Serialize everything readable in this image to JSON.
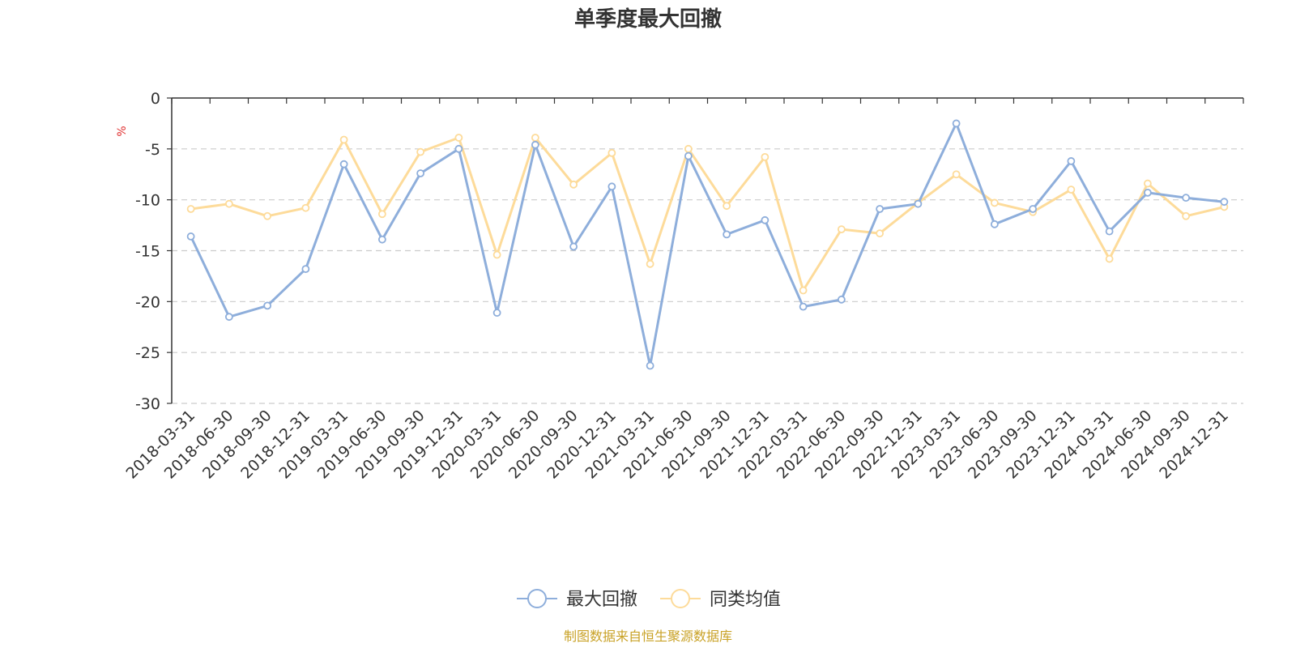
{
  "chart_data": {
    "type": "line",
    "title": "单季度最大回撤",
    "ylabel": "%",
    "ylim": [
      -30,
      0
    ],
    "yticks": [
      0,
      -5,
      -10,
      -15,
      -20,
      -25,
      -30
    ],
    "grid": true,
    "legend_position": "bottom",
    "categories": [
      "2018-03-31",
      "2018-06-30",
      "2018-09-30",
      "2018-12-31",
      "2019-03-31",
      "2019-06-30",
      "2019-09-30",
      "2019-12-31",
      "2020-03-31",
      "2020-06-30",
      "2020-09-30",
      "2020-12-31",
      "2021-03-31",
      "2021-06-30",
      "2021-09-30",
      "2021-12-31",
      "2022-03-31",
      "2022-06-30",
      "2022-09-30",
      "2022-12-31",
      "2023-03-31",
      "2023-06-30",
      "2023-09-30",
      "2023-12-31",
      "2024-03-31",
      "2024-06-30",
      "2024-09-30",
      "2024-12-31"
    ],
    "series": [
      {
        "name": "最大回撤",
        "color": "#8eaedb",
        "values": [
          -13.6,
          -21.5,
          -20.4,
          -16.8,
          -6.5,
          -13.9,
          -7.4,
          -5.0,
          -21.1,
          -4.6,
          -14.6,
          -8.7,
          -26.3,
          -5.7,
          -13.4,
          -12.0,
          -20.5,
          -19.8,
          -10.9,
          -10.4,
          -2.5,
          -12.4,
          -10.9,
          -6.2,
          -13.1,
          -9.3,
          -9.8,
          -10.2
        ]
      },
      {
        "name": "同类均值",
        "color": "#fddb9a",
        "values": [
          -10.9,
          -10.4,
          -11.6,
          -10.8,
          -4.1,
          -11.4,
          -5.3,
          -3.9,
          -15.4,
          -3.9,
          -8.5,
          -5.4,
          -16.3,
          -5.0,
          -10.6,
          -5.8,
          -18.9,
          -12.9,
          -13.3,
          -10.3,
          -7.5,
          -10.3,
          -11.2,
          -9.0,
          -15.8,
          -8.4,
          -11.6,
          -10.7
        ]
      }
    ]
  },
  "source_text": "制图数据来自恒生聚源数据库",
  "colors": {
    "axis": "#333333",
    "grid": "#cccccc",
    "unit": "#e03030",
    "source": "#c9a227"
  }
}
